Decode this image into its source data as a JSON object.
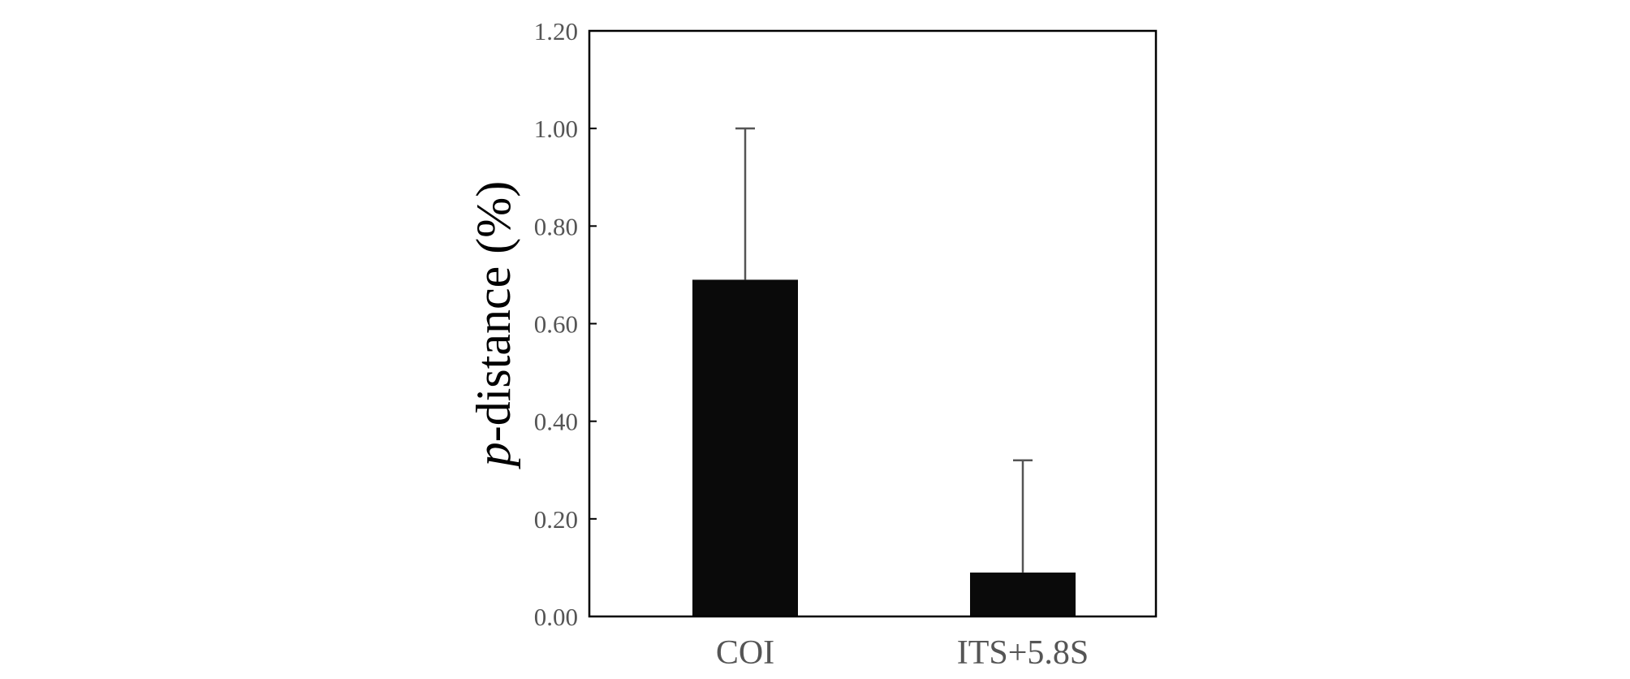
{
  "chart_data": {
    "type": "bar",
    "title": "",
    "xlabel": "",
    "ylabel_italic": "p",
    "ylabel_rest": "-distance (%)",
    "categories": [
      "COI",
      "ITS+5.8S"
    ],
    "values": [
      0.69,
      0.09
    ],
    "error_upper": [
      1.0,
      0.32
    ],
    "ylim": [
      0,
      1.2
    ],
    "yticks": [
      0,
      0.2,
      0.4,
      0.6,
      0.8,
      1.0,
      1.2
    ],
    "ytick_labels": [
      "0.00",
      "0.20",
      "0.40",
      "0.60",
      "0.80",
      "1.00",
      "1.20"
    ],
    "grid": false,
    "legend": "none",
    "colors": {
      "bar": "#0a0a0a",
      "error_bar": "#555555",
      "frame": "#000000",
      "tick_label": "#555555"
    }
  }
}
